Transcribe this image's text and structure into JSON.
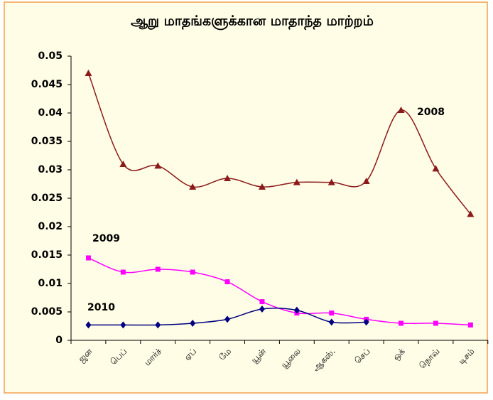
{
  "chart_data": {
    "type": "line",
    "title": "ஆறு மாதங்களுக்கான மாதாந்த மாற்றம்",
    "categories": [
      "ஜன",
      "பெப்",
      "மார்ச்",
      "ஏப்",
      "மே",
      "யூன்",
      "யூலை",
      "ஆகஸ்.",
      "செப்",
      "ஒக்",
      "நொவ்",
      "டிசம்"
    ],
    "series": [
      {
        "name": "2008",
        "color": "#8b1a1a",
        "marker": "triangle",
        "values": [
          0.047,
          0.031,
          0.0307,
          0.027,
          0.0285,
          0.027,
          0.0278,
          0.0278,
          0.028,
          0.0405,
          0.0302,
          0.0222
        ]
      },
      {
        "name": "2009",
        "color": "#ff00ff",
        "marker": "square",
        "values": [
          0.0145,
          0.012,
          0.0125,
          0.012,
          0.0103,
          0.0068,
          0.0048,
          0.0048,
          0.0037,
          0.003,
          0.003,
          0.0027
        ]
      },
      {
        "name": "2010",
        "color": "#000080",
        "marker": "diamond",
        "values": [
          0.0027,
          0.0027,
          0.0027,
          0.003,
          0.0037,
          0.0055,
          0.0053,
          0.0032,
          0.0032,
          null,
          null,
          null
        ]
      }
    ],
    "ylim": [
      0,
      0.05
    ],
    "yticks": [
      0,
      0.005,
      0.01,
      0.015,
      0.02,
      0.025,
      0.03,
      0.035,
      0.04,
      0.045,
      0.05
    ]
  }
}
